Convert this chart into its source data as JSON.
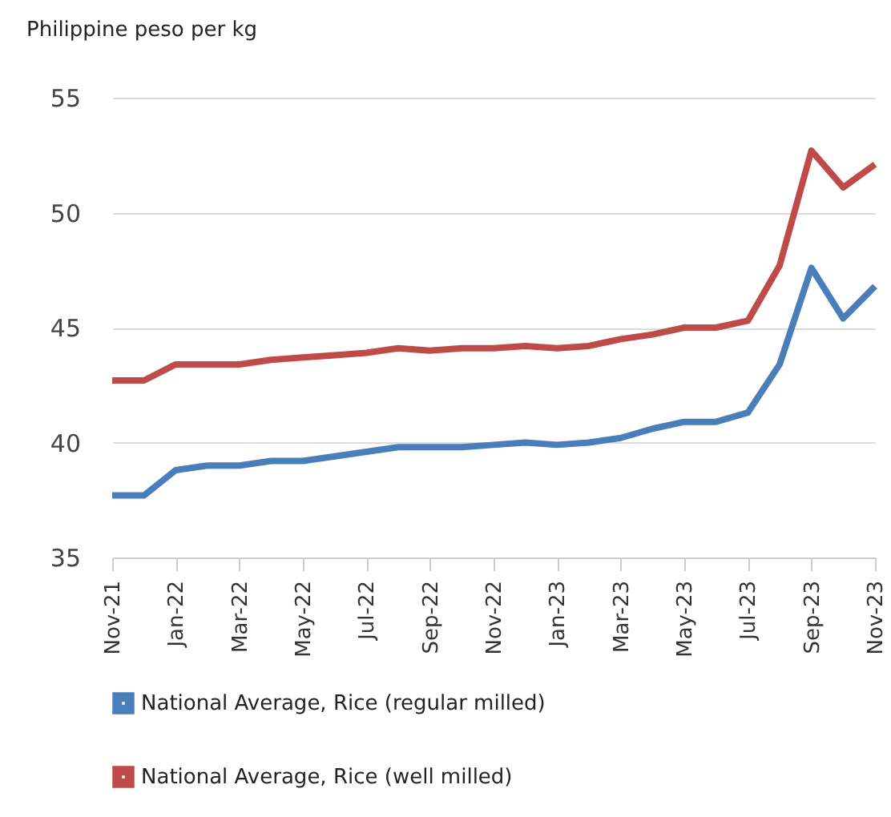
{
  "chart_data": {
    "type": "line",
    "ylabel": "Philippine peso per kg",
    "categories": [
      "Nov-21",
      null,
      "Jan-22",
      null,
      "Mar-22",
      null,
      "May-22",
      null,
      "Jul-22",
      null,
      "Sep-22",
      null,
      "Nov-22",
      null,
      "Jan-23",
      null,
      "Mar-23",
      null,
      "May-23",
      null,
      "Jul-23",
      null,
      "Sep-23",
      null,
      "Nov-23"
    ],
    "series": [
      {
        "name": "National Average, Rice (regular milled)",
        "color": "#4a7ebb",
        "values": [
          37.7,
          37.7,
          38.8,
          39.0,
          39.0,
          39.2,
          39.2,
          39.4,
          39.6,
          39.8,
          39.8,
          39.8,
          39.9,
          40.0,
          39.9,
          40.0,
          40.2,
          40.6,
          40.9,
          40.9,
          41.3,
          43.4,
          47.6,
          45.4,
          46.8
        ]
      },
      {
        "name": "National Average, Rice (well milled)",
        "color": "#be4b48",
        "values": [
          42.7,
          42.7,
          43.4,
          43.4,
          43.4,
          43.6,
          43.7,
          43.8,
          43.9,
          44.1,
          44.0,
          44.1,
          44.1,
          44.2,
          44.1,
          44.2,
          44.5,
          44.7,
          45.0,
          45.0,
          45.3,
          47.7,
          52.7,
          51.1,
          52.1
        ]
      }
    ],
    "ylim": [
      35,
      55
    ],
    "yticks": [
      35,
      40,
      45,
      50,
      55
    ],
    "grid": "y",
    "legend": "bottom"
  }
}
